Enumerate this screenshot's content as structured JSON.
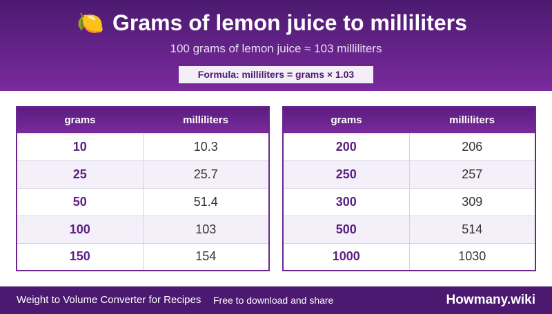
{
  "header": {
    "icon": "🍋",
    "title": "Grams of lemon juice to milliliters",
    "subtitle": "100 grams of lemon juice ≈ 103 milliliters",
    "formula": "Formula: milliliters = grams × 1.03"
  },
  "tables": [
    {
      "columns": [
        "grams",
        "milliliters"
      ],
      "rows": [
        [
          10,
          10.3
        ],
        [
          25,
          25.7
        ],
        [
          50,
          51.4
        ],
        [
          100,
          103
        ],
        [
          150,
          154
        ]
      ]
    },
    {
      "columns": [
        "grams",
        "milliliters"
      ],
      "rows": [
        [
          200,
          206
        ],
        [
          250,
          257
        ],
        [
          300,
          309
        ],
        [
          500,
          514
        ],
        [
          1000,
          1030
        ]
      ]
    }
  ],
  "footer": {
    "left": "Weight to Volume Converter for Recipes",
    "note": "Free to download and share",
    "brand": "Howmany.wiki"
  }
}
